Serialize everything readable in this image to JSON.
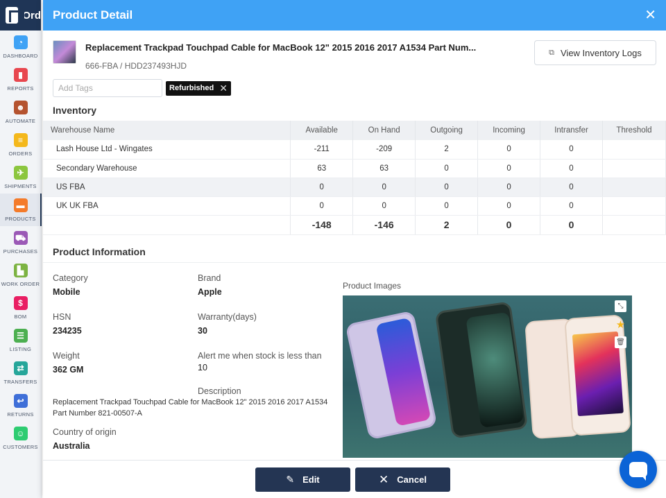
{
  "app": {
    "brand": "Ord"
  },
  "sidebar": {
    "items": [
      {
        "label": "DASHBOARD",
        "icon": "dashboard-icon",
        "color": "#3fa2f5",
        "glyph": "◔"
      },
      {
        "label": "REPORTS",
        "icon": "reports-icon",
        "color": "#e8474f",
        "glyph": "▮"
      },
      {
        "label": "AUTOMATE",
        "icon": "robot-icon",
        "color": "#b5532f",
        "glyph": "☻"
      },
      {
        "label": "ORDERS",
        "icon": "orders-icon",
        "color": "#f4b81c",
        "glyph": "≡"
      },
      {
        "label": "SHIPMENTS",
        "icon": "plane-icon",
        "color": "#8cc63f",
        "glyph": "✈"
      },
      {
        "label": "PRODUCTS",
        "icon": "box-icon",
        "color": "#f47b2a",
        "glyph": "▬"
      },
      {
        "label": "PURCHASES",
        "icon": "cart-icon",
        "color": "#9b59b6",
        "glyph": "⛟"
      },
      {
        "label": "WORK ORDER",
        "icon": "factory-icon",
        "color": "#7cb342",
        "glyph": "▙"
      },
      {
        "label": "BOM",
        "icon": "bom-icon",
        "color": "#e91e63",
        "glyph": "$"
      },
      {
        "label": "LISTING",
        "icon": "listing-icon",
        "color": "#4caf50",
        "glyph": "☰"
      },
      {
        "label": "TRANSFERS",
        "icon": "transfer-icon",
        "color": "#26a69a",
        "glyph": "⇄"
      },
      {
        "label": "RETURNS",
        "icon": "return-icon",
        "color": "#3f6fd8",
        "glyph": "↩"
      },
      {
        "label": "CUSTOMERS",
        "icon": "customers-icon",
        "color": "#2ecc71",
        "glyph": "☺"
      }
    ],
    "active_index": 5
  },
  "modal": {
    "title": "Product Detail",
    "product_name": "Replacement Trackpad Touchpad Cable for MacBook 12\" 2015 2016 2017 A1534 Part Num...",
    "sku": "666-FBA / HDD237493HJD",
    "logs_button": "View Inventory Logs",
    "tags_placeholder": "Add Tags",
    "tags": [
      "Refurbished"
    ],
    "inventory_title": "Inventory",
    "inventory": {
      "columns": [
        "Warehouse Name",
        "Available",
        "On Hand",
        "Outgoing",
        "Incoming",
        "Intransfer",
        "Threshold"
      ],
      "rows": [
        [
          "Lash House Ltd - Wingates",
          "-211",
          "-209",
          "2",
          "0",
          "0",
          ""
        ],
        [
          "Secondary Warehouse",
          "63",
          "63",
          "0",
          "0",
          "0",
          ""
        ],
        [
          "US FBA",
          "0",
          "0",
          "0",
          "0",
          "0",
          ""
        ],
        [
          "UK UK FBA",
          "0",
          "0",
          "0",
          "0",
          "0",
          ""
        ]
      ],
      "totals": [
        "",
        "-148",
        "-146",
        "2",
        "0",
        "0",
        ""
      ]
    },
    "info_title": "Product Information",
    "info": {
      "category_label": "Category",
      "category": "Mobile",
      "brand_label": "Brand",
      "brand": "Apple",
      "hsn_label": "HSN",
      "hsn": "234235",
      "warranty_label": "Warranty(days)",
      "warranty": "30",
      "weight_label": "Weight",
      "weight": "362 GM",
      "alert_label": "Alert me when stock is less than",
      "alert": "10",
      "description_label": "Description",
      "description": "Replacement Trackpad Touchpad Cable for MacBook 12\" 2015 2016 2017 A1534 Part Number 821-00507-A",
      "country_label": "Country of origin",
      "country": "Australia"
    },
    "images_label": "Product Images",
    "edit_button": "Edit",
    "cancel_button": "Cancel"
  }
}
